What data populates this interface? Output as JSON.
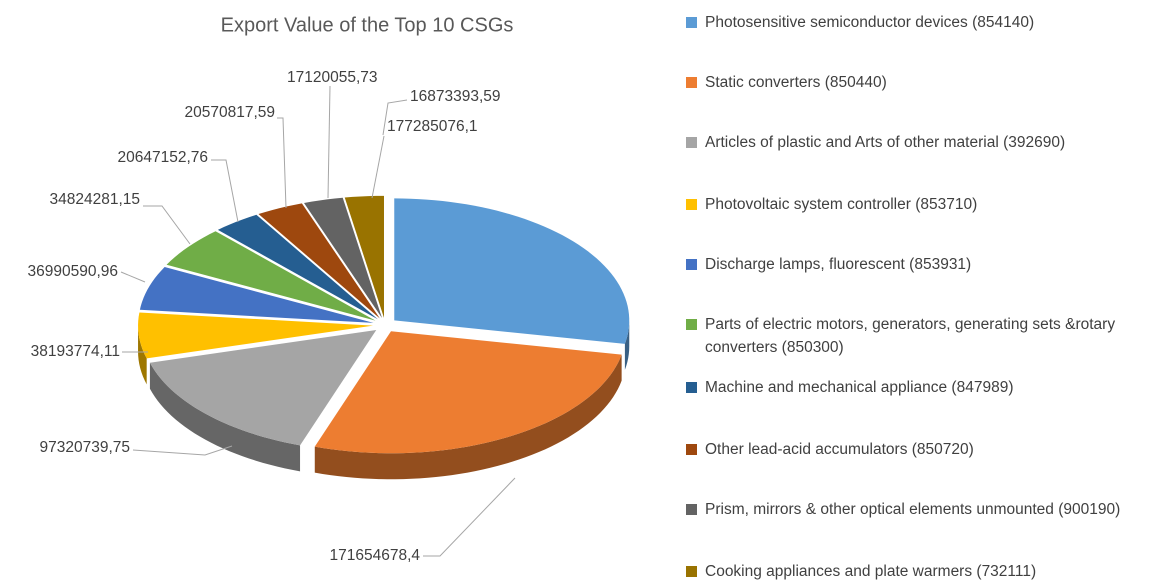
{
  "chart_data": {
    "type": "pie",
    "title": "Export Value of the Top 10 CSGs",
    "series": [
      {
        "names": [
          "Photosensitive semiconductor devices (854140)",
          "Static converters (850440)",
          "Articles of plastic and Arts of other material (392690)",
          "Photovoltaic system controller (853710)",
          "Discharge lamps, fluorescent (853931)",
          "Parts of electric motors, generators, generating sets &rotary converters (850300)",
          "Machine and mechanical appliance (847989)",
          "Other lead-acid accumulators (850720)",
          "Prism, mirrors & other optical elements unmounted (900190)",
          "Cooking appliances and plate warmers (732111)"
        ],
        "colors": [
          "#5b9bd5",
          "#ed7d31",
          "#a5a5a5",
          "#ffc000",
          "#4472c4",
          "#70ad47",
          "#255e91",
          "#9e480e",
          "#636363",
          "#997300"
        ],
        "values": [
          177285076.1,
          171654678.4,
          97320739.75,
          38193774.11,
          36990590.96,
          34824281.15,
          20647152.76,
          20570817.59,
          17120055.73,
          16873393.59
        ],
        "value_labels": [
          "177285076,1",
          "171654678,4",
          "97320739,75",
          "38193774,11",
          "36990590,96",
          "34824281,15",
          "20647152,76",
          "20570817,59",
          "17120055,73",
          "16873393,59"
        ]
      }
    ],
    "legend": "right"
  }
}
